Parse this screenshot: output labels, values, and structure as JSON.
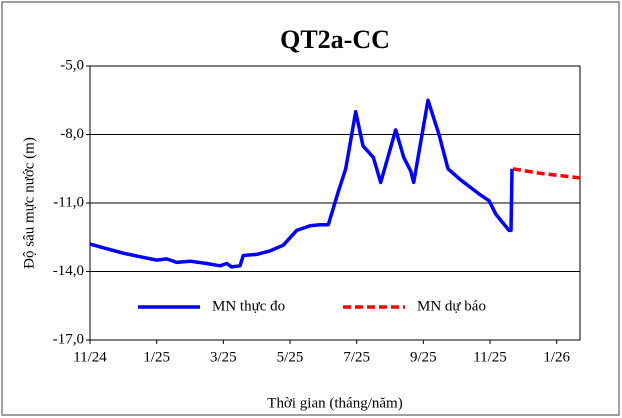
{
  "chart_data": {
    "type": "line",
    "title": "QT2a-CC",
    "xlabel": "Thời gian (tháng/năm)",
    "ylabel": "Độ sâu mực nước (m)",
    "xlim": [
      0,
      14.7
    ],
    "xticks": [
      {
        "value": 0,
        "label": "11/24"
      },
      {
        "value": 2,
        "label": "1/25"
      },
      {
        "value": 4,
        "label": "3/25"
      },
      {
        "value": 6,
        "label": "5/25"
      },
      {
        "value": 8,
        "label": "7/25"
      },
      {
        "value": 10,
        "label": "9/25"
      },
      {
        "value": 12,
        "label": "11/25"
      },
      {
        "value": 14,
        "label": "1/26"
      }
    ],
    "ylim": [
      -17,
      -5
    ],
    "yticks": [
      {
        "value": -17,
        "label": "-17,0"
      },
      {
        "value": -14,
        "label": "-14,0"
      },
      {
        "value": -11,
        "label": "-11,0"
      },
      {
        "value": -8,
        "label": "-8,0"
      },
      {
        "value": -5,
        "label": "-5,0"
      }
    ],
    "grid": true,
    "series": [
      {
        "name": "MN thực đo",
        "color": "#0000ff",
        "style": "solid",
        "x": [
          0,
          0.5,
          1,
          1.5,
          2,
          2.3,
          2.6,
          3,
          3.5,
          3.9,
          4.1,
          4.25,
          4.5,
          4.6,
          5,
          5.4,
          5.8,
          6.2,
          6.6,
          6.9,
          7.15,
          7.45,
          7.67,
          7.97,
          8.19,
          8.5,
          8.72,
          9.17,
          9.41,
          9.62,
          9.71,
          10.14,
          10.47,
          10.74,
          11.13,
          11.67,
          11.97,
          12.18,
          12.57,
          12.63,
          12.66
        ],
        "values": [
          -12.8,
          -13.0,
          -13.2,
          -13.35,
          -13.5,
          -13.45,
          -13.6,
          -13.55,
          -13.65,
          -13.75,
          -13.65,
          -13.8,
          -13.75,
          -13.3,
          -13.25,
          -13.1,
          -12.85,
          -12.2,
          -12.0,
          -11.95,
          -11.95,
          -10.5,
          -9.5,
          -7.0,
          -8.5,
          -9.0,
          -10.1,
          -7.8,
          -9.0,
          -9.6,
          -10.1,
          -6.5,
          -8.0,
          -9.5,
          -10.0,
          -10.6,
          -10.9,
          -11.5,
          -12.2,
          -12.2,
          -9.5
        ]
      },
      {
        "name": "MN dự báo",
        "color": "#ff0000",
        "style": "dashed",
        "x": [
          12.69,
          13.5,
          14.7
        ],
        "values": [
          -9.5,
          -9.7,
          -9.9
        ]
      }
    ]
  }
}
